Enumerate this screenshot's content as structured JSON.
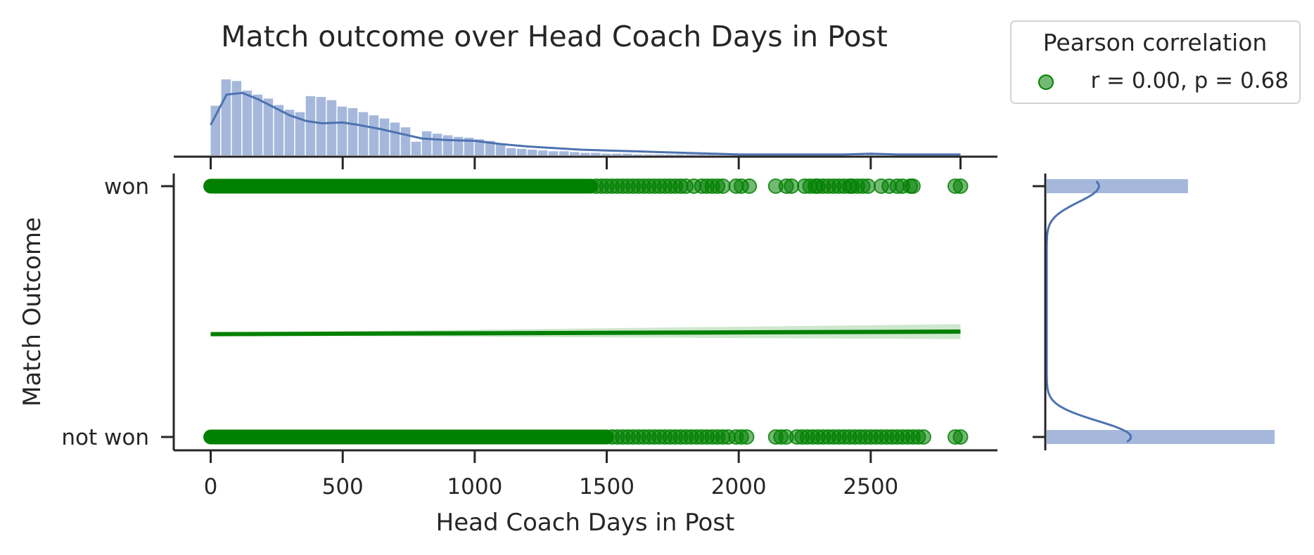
{
  "chart_data": {
    "type": "scatter",
    "title": "Match outcome over Head Coach Days in Post",
    "xlabel": "Head Coach Days in Post",
    "ylabel": "Match Outcome",
    "xlim": [
      -140,
      2980
    ],
    "ylim": [
      -0.05,
      1.05
    ],
    "xticks": [
      0,
      500,
      1000,
      1500,
      2000,
      2500
    ],
    "yticks": [
      {
        "value": 0,
        "label": "not won"
      },
      {
        "value": 1,
        "label": "won"
      }
    ],
    "legend": {
      "title": "Pearson correlation",
      "entries": [
        "r = 0.00, p = 0.68"
      ],
      "placement": "outside top-right"
    },
    "colors": {
      "points": "#008000",
      "fit_line": "#008000",
      "ci_band": "#bfdfbf",
      "hist": "#a5b8dc",
      "kde": "#4c72b0"
    },
    "series": [
      {
        "name": "r = 0.00, p = 0.68",
        "kind": "scatter",
        "won_dense_range": [
          0,
          1440
        ],
        "won_x": [
          1460,
          1480,
          1500,
          1520,
          1540,
          1560,
          1580,
          1600,
          1620,
          1640,
          1660,
          1680,
          1700,
          1720,
          1740,
          1760,
          1780,
          1800,
          1830,
          1860,
          1880,
          1900,
          1920,
          1940,
          1990,
          2010,
          2040,
          2140,
          2180,
          2200,
          2250,
          2270,
          2290,
          2300,
          2320,
          2340,
          2360,
          2380,
          2400,
          2420,
          2430,
          2450,
          2470,
          2490,
          2540,
          2570,
          2600,
          2620,
          2650,
          2660,
          2820,
          2840
        ],
        "not_won_dense_range": [
          0,
          1500
        ],
        "not_won_x": [
          1520,
          1540,
          1560,
          1580,
          1600,
          1620,
          1640,
          1660,
          1680,
          1700,
          1720,
          1740,
          1760,
          1780,
          1800,
          1820,
          1840,
          1860,
          1880,
          1900,
          1920,
          1940,
          1960,
          1990,
          2010,
          2030,
          2140,
          2160,
          2180,
          2220,
          2240,
          2260,
          2280,
          2300,
          2320,
          2340,
          2360,
          2380,
          2400,
          2420,
          2440,
          2460,
          2480,
          2500,
          2520,
          2540,
          2560,
          2580,
          2600,
          2620,
          2640,
          2660,
          2680,
          2700,
          2820,
          2840
        ]
      },
      {
        "name": "linear fit",
        "kind": "line",
        "x": [
          0,
          2840
        ],
        "y": [
          0.41,
          0.42
        ],
        "ci_lower": [
          0.405,
          0.39
        ],
        "ci_upper": [
          0.415,
          0.45
        ]
      }
    ],
    "marginal_x_hist": {
      "bin_width": 40,
      "bin_start": 0,
      "counts": [
        62,
        95,
        93,
        81,
        76,
        71,
        63,
        57,
        54,
        74,
        73,
        69,
        61,
        59,
        54,
        50,
        46,
        41,
        35,
        17,
        30,
        27,
        25,
        23,
        22,
        20,
        18,
        15,
        9,
        8,
        7,
        6,
        5,
        5,
        4,
        3,
        3,
        2,
        2,
        2,
        1,
        1,
        1,
        1,
        1,
        1,
        1,
        1,
        1,
        1,
        1,
        1,
        1,
        1,
        1,
        1,
        1,
        1,
        1,
        1,
        1,
        1,
        1,
        1,
        1,
        1,
        1,
        1,
        1,
        1,
        1
      ],
      "kde_x": [
        0,
        60,
        120,
        180,
        240,
        300,
        360,
        420,
        500,
        560,
        640,
        720,
        800,
        900,
        1000,
        1100,
        1200,
        1300,
        1400,
        1500,
        1600,
        1700,
        1800,
        1900,
        2000,
        2100,
        2200,
        2300,
        2400,
        2500,
        2600,
        2700,
        2840
      ],
      "kde_y": [
        38,
        76,
        78,
        70,
        60,
        50,
        43,
        40,
        41,
        38,
        33,
        27,
        21,
        19,
        18,
        14,
        11,
        9,
        7,
        6,
        5,
        4,
        3,
        2,
        1,
        1,
        1,
        1,
        1,
        2,
        1,
        1,
        1
      ]
    },
    "marginal_y_hist": {
      "categories": [
        "won",
        "not won"
      ],
      "counts": [
        0.62,
        1.0
      ]
    }
  }
}
